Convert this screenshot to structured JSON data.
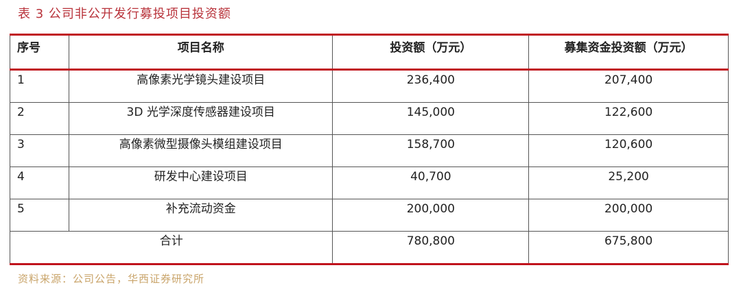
{
  "title": "表 3 公司非公开发行募投项目投资额",
  "headers": [
    "序号",
    "项目名称",
    "投资额（万元）",
    "募集资金投资额（万元）"
  ],
  "rows": [
    [
      "1",
      "高像素光学镜头建设项目",
      "236,400",
      "207,400"
    ],
    [
      "2",
      "3D 光学深度传感器建设项目",
      "145,000",
      "122,600"
    ],
    [
      "3",
      "高像素微型摄像头模组建设项目",
      "158,700",
      "120,600"
    ],
    [
      "4",
      "研发中心建设项目",
      "40,700",
      "25,200"
    ],
    [
      "5",
      "补充流动资金",
      "200,000",
      "200,000"
    ]
  ],
  "total": {
    "label": "合计",
    "investment": "780,800",
    "raised": "675,800"
  },
  "source": "资料来源：公司公告，华西证券研究所"
}
